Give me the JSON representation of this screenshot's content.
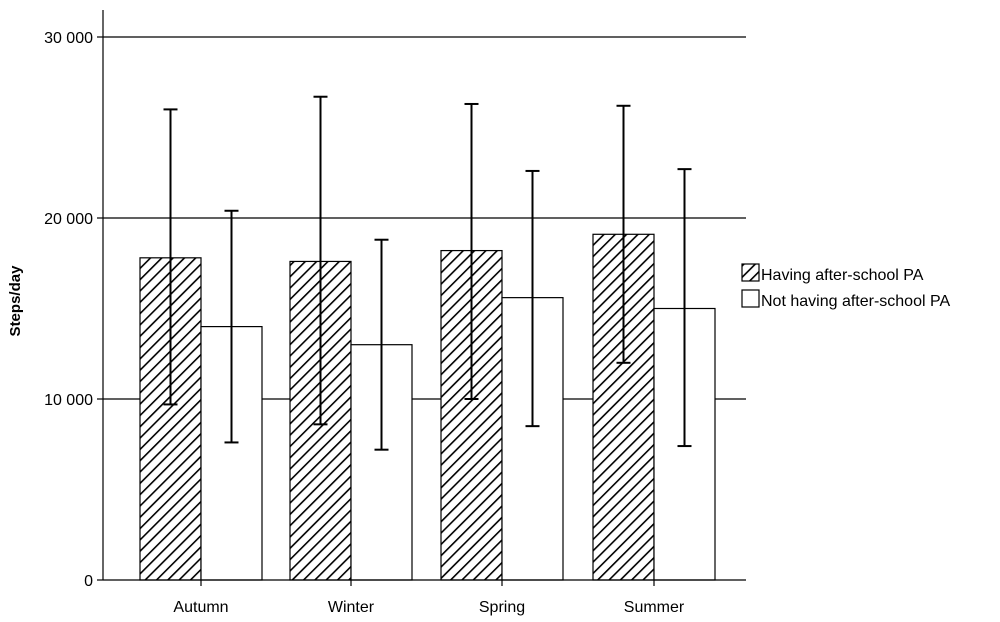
{
  "chart_data": {
    "type": "bar",
    "title": "",
    "xlabel": "",
    "ylabel": "Steps/day",
    "ylim": [
      0,
      30000
    ],
    "yticks": [
      0,
      10000,
      20000,
      30000
    ],
    "ytick_labels": [
      "0",
      "10 000",
      "20 000",
      "30 000"
    ],
    "categories": [
      "Autumn",
      "Winter",
      "Spring",
      "Summer"
    ],
    "grid": "horizontal major lines",
    "legend_position": "right",
    "error_bars": true,
    "series": [
      {
        "name": "Having after-school PA",
        "fill": "hatched",
        "values": [
          17800,
          17600,
          18200,
          19100
        ],
        "error_low": [
          9700,
          8600,
          10000,
          12000
        ],
        "error_high": [
          26000,
          26700,
          26300,
          26200
        ]
      },
      {
        "name": "Not having after-school PA",
        "fill": "white",
        "values": [
          14000,
          13000,
          15600,
          15000
        ],
        "error_low": [
          7600,
          7200,
          8500,
          7400
        ],
        "error_high": [
          20400,
          18800,
          22600,
          22700
        ]
      }
    ],
    "colors": {
      "line": "#000000",
      "grid": "#000000",
      "background": "#ffffff"
    }
  }
}
